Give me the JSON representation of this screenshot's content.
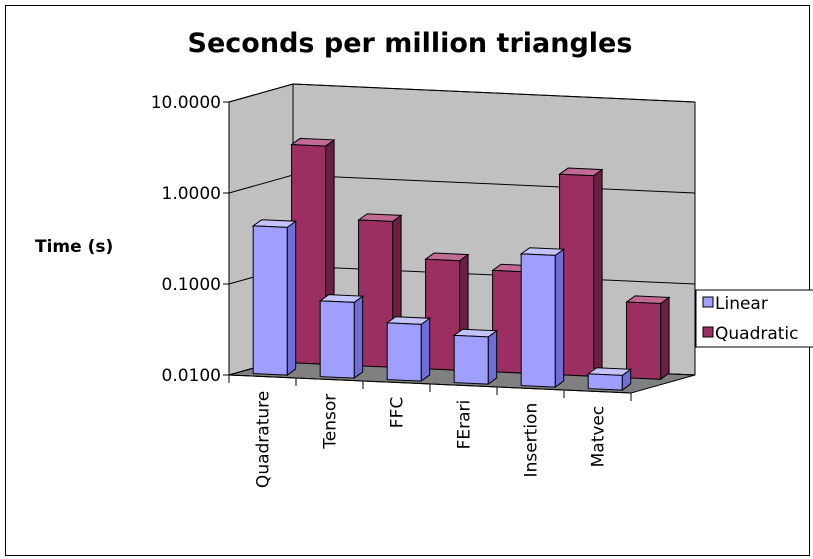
{
  "chart_data": {
    "type": "bar",
    "title": "Seconds per million triangles",
    "ylabel": "Time (s)",
    "xlabel": "",
    "yscale": "log",
    "ylim": [
      0.01,
      10
    ],
    "yticks": [
      "10.0000",
      "1.0000",
      "0.1000",
      "0.0100"
    ],
    "categories": [
      "Quadrature",
      "Tensor",
      "FFC",
      "FErari",
      "Insertion",
      "Matvec"
    ],
    "series": [
      {
        "name": "Linear",
        "values": [
          0.42,
          0.068,
          0.042,
          0.033,
          0.28,
          0.0145
        ]
      },
      {
        "name": "Quadratic",
        "values": [
          2.5,
          0.4,
          0.16,
          0.13,
          1.6,
          0.068
        ]
      }
    ],
    "grid": true,
    "legend": "right",
    "colors": {
      "linear_front": "#9f9fff",
      "linear_side": "#6e6ed6",
      "linear_top": "#c4c4ff",
      "quadratic_front": "#9b2f62",
      "quadratic_side": "#6b1f43",
      "quadratic_top": "#c06a94",
      "wall": "#c0c0c0",
      "floor": "#808080"
    }
  }
}
